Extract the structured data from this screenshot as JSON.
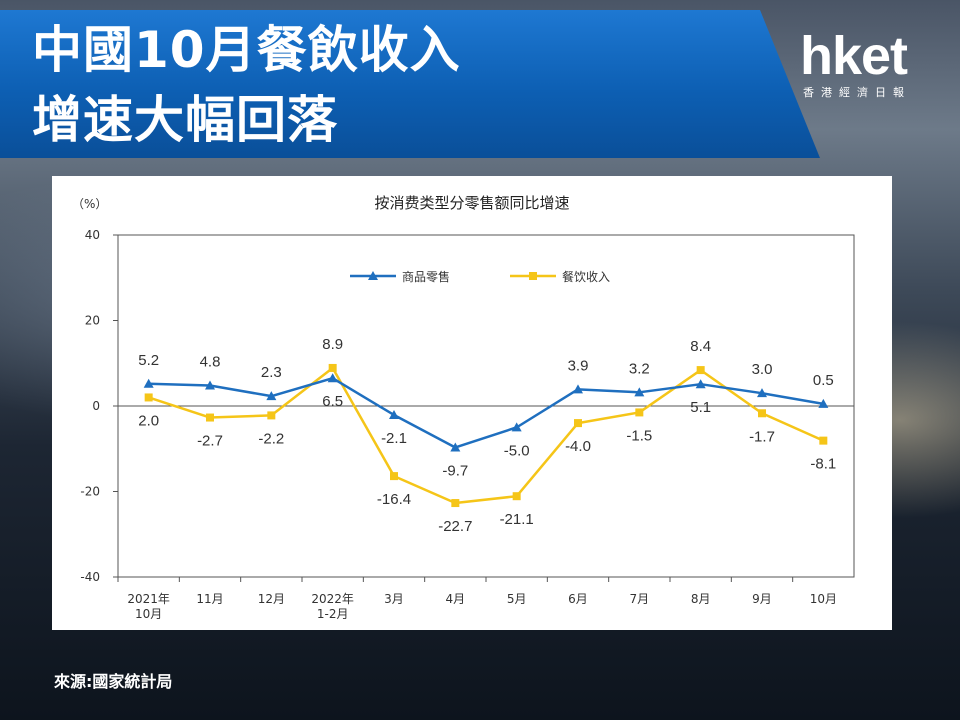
{
  "header": {
    "title_line1": "中國10月餐飲收入",
    "title_line2": "增速大幅回落"
  },
  "logo": {
    "brand": "hket",
    "subtitle": "香港經濟日報"
  },
  "footer": {
    "source": "來源:國家統計局"
  },
  "colors": {
    "banner": "#0d5fb3",
    "retail": "#1f6fbf",
    "catering": "#f5c518"
  },
  "chart_data": {
    "type": "line",
    "title": "按消费类型分零售额同比增速",
    "ylabel": "（%）",
    "ylim": [
      -40,
      40
    ],
    "yticks": [
      40,
      20,
      0,
      -20,
      -40
    ],
    "categories": [
      [
        "2021年",
        "10月"
      ],
      [
        "11月"
      ],
      [
        "12月"
      ],
      [
        "2022年",
        "1-2月"
      ],
      [
        "3月"
      ],
      [
        "4月"
      ],
      [
        "5月"
      ],
      [
        "6月"
      ],
      [
        "7月"
      ],
      [
        "8月"
      ],
      [
        "9月"
      ],
      [
        "10月"
      ]
    ],
    "legend_position": "top",
    "series": [
      {
        "name": "商品零售",
        "color": "#1f6fbf",
        "marker": "triangle",
        "values": [
          5.2,
          4.8,
          2.3,
          6.5,
          -2.1,
          -9.7,
          -5.0,
          3.9,
          3.2,
          5.1,
          3.0,
          0.5
        ],
        "labels": [
          "5.2",
          "4.8",
          "2.3",
          "6.5",
          "-2.1",
          "-9.7",
          "-5.0",
          "3.9",
          "3.2",
          "5.1",
          "3.0",
          "0.5"
        ],
        "label_pos": [
          "above",
          "above",
          "above",
          "below",
          "below",
          "below",
          "below",
          "above",
          "above",
          "below",
          "above",
          "above"
        ]
      },
      {
        "name": "餐饮收入",
        "color": "#f5c518",
        "marker": "square",
        "values": [
          2.0,
          -2.7,
          -2.2,
          8.9,
          -16.4,
          -22.7,
          -21.1,
          -4.0,
          -1.5,
          8.4,
          -1.7,
          -8.1
        ],
        "labels": [
          "2.0",
          "-2.7",
          "-2.2",
          "8.9",
          "-16.4",
          "-22.7",
          "-21.1",
          "-4.0",
          "-1.5",
          "8.4",
          "-1.7",
          "-8.1"
        ],
        "label_pos": [
          "below",
          "below",
          "below",
          "above",
          "below",
          "below",
          "below",
          "below",
          "below",
          "above",
          "below",
          "below"
        ]
      }
    ]
  }
}
